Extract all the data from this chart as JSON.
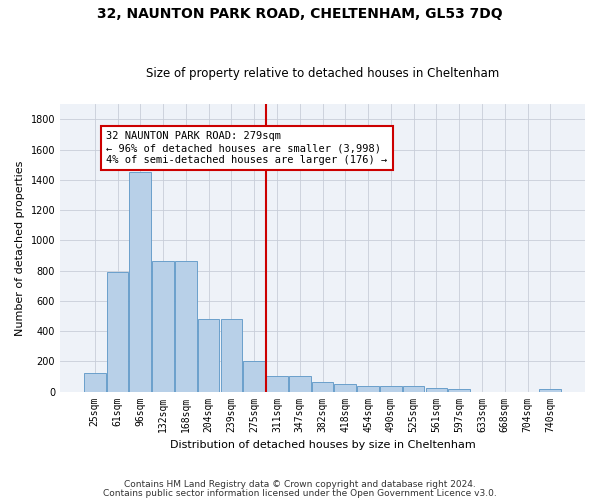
{
  "title": "32, NAUNTON PARK ROAD, CHELTENHAM, GL53 7DQ",
  "subtitle": "Size of property relative to detached houses in Cheltenham",
  "xlabel": "Distribution of detached houses by size in Cheltenham",
  "ylabel": "Number of detached properties",
  "categories": [
    "25sqm",
    "61sqm",
    "96sqm",
    "132sqm",
    "168sqm",
    "204sqm",
    "239sqm",
    "275sqm",
    "311sqm",
    "347sqm",
    "382sqm",
    "418sqm",
    "454sqm",
    "490sqm",
    "525sqm",
    "561sqm",
    "597sqm",
    "633sqm",
    "668sqm",
    "704sqm",
    "740sqm"
  ],
  "values": [
    120,
    790,
    1455,
    865,
    865,
    480,
    480,
    200,
    100,
    100,
    65,
    50,
    40,
    35,
    35,
    25,
    15,
    0,
    0,
    0,
    20
  ],
  "bar_color": "#b8d0e8",
  "bar_edge_color": "#6a9fcb",
  "annotation_text": "32 NAUNTON PARK ROAD: 279sqm\n← 96% of detached houses are smaller (3,998)\n4% of semi-detached houses are larger (176) →",
  "annotation_box_color": "#ffffff",
  "annotation_box_edge_color": "#cc0000",
  "vline_color": "#cc0000",
  "footer_line1": "Contains HM Land Registry data © Crown copyright and database right 2024.",
  "footer_line2": "Contains public sector information licensed under the Open Government Licence v3.0.",
  "bg_color": "#eef2f8",
  "grid_color": "#c8cdd8",
  "ylim": [
    0,
    1900
  ],
  "yticks": [
    0,
    200,
    400,
    600,
    800,
    1000,
    1200,
    1400,
    1600,
    1800
  ],
  "title_fontsize": 10,
  "subtitle_fontsize": 8.5,
  "axis_label_fontsize": 8,
  "tick_fontsize": 7,
  "annotation_fontsize": 7.5,
  "footer_fontsize": 6.5,
  "vline_index": 7.5
}
